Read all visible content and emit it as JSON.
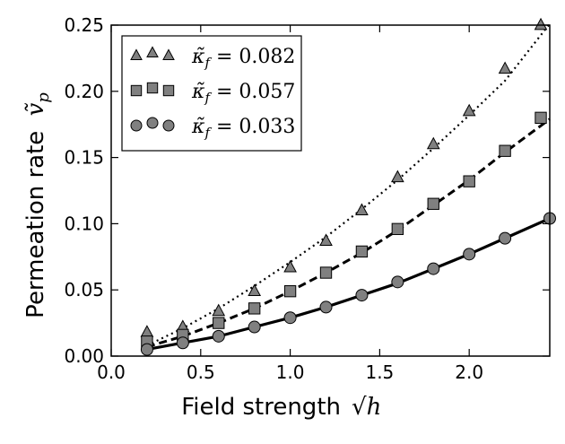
{
  "chart_data": {
    "type": "scatter",
    "title": "",
    "xlabel": "Field strength",
    "xlabel_symbol": "√h",
    "ylabel": "Permeation rate",
    "ylabel_symbol": "ṽ",
    "ylabel_subscript": "p",
    "xlim": [
      0.0,
      2.45
    ],
    "ylim": [
      0.0,
      0.25
    ],
    "xticks": [
      0.0,
      0.5,
      1.0,
      1.5,
      2.0
    ],
    "xtick_labels": [
      "0.0",
      "0.5",
      "1.0",
      "1.5",
      "2.0"
    ],
    "yticks": [
      0.0,
      0.05,
      0.1,
      0.15,
      0.2,
      0.25
    ],
    "ytick_labels": [
      "0.00",
      "0.05",
      "0.10",
      "0.15",
      "0.20",
      "0.25"
    ],
    "grid": false,
    "legend_position": "top-left",
    "legend_symbol": "κ̃",
    "legend_subscript": "f",
    "series": [
      {
        "name": "0.082",
        "marker": "triangle",
        "line_style": "dotted",
        "marker_color": "#808080",
        "x": [
          0.2,
          0.4,
          0.6,
          0.8,
          1.0,
          1.2,
          1.4,
          1.6,
          1.8,
          2.0,
          2.2,
          2.4
        ],
        "y": [
          0.018,
          0.022,
          0.034,
          0.049,
          0.067,
          0.087,
          0.11,
          0.135,
          0.16,
          0.185,
          0.217,
          0.25
        ],
        "fit_x": [
          0.2,
          0.4,
          0.6,
          0.8,
          1.0,
          1.2,
          1.4,
          1.6,
          1.8,
          2.0,
          2.2,
          2.45
        ],
        "fit_y": [
          0.008,
          0.021,
          0.036,
          0.053,
          0.071,
          0.09,
          0.111,
          0.133,
          0.157,
          0.182,
          0.208,
          0.251
        ]
      },
      {
        "name": "0.057",
        "marker": "square",
        "line_style": "dashed",
        "marker_color": "#808080",
        "x": [
          0.2,
          0.4,
          0.6,
          0.8,
          1.0,
          1.2,
          1.4,
          1.6,
          1.8,
          2.0,
          2.2,
          2.4
        ],
        "y": [
          0.011,
          0.016,
          0.025,
          0.036,
          0.049,
          0.063,
          0.079,
          0.096,
          0.115,
          0.132,
          0.155,
          0.18
        ],
        "fit_x": [
          0.2,
          0.4,
          0.6,
          0.8,
          1.0,
          1.2,
          1.4,
          1.6,
          1.8,
          2.0,
          2.2,
          2.45
        ],
        "fit_y": [
          0.007,
          0.015,
          0.025,
          0.036,
          0.049,
          0.063,
          0.078,
          0.095,
          0.114,
          0.133,
          0.154,
          0.179
        ]
      },
      {
        "name": "0.033",
        "marker": "circle",
        "line_style": "solid",
        "marker_color": "#808080",
        "x": [
          0.2,
          0.4,
          0.6,
          0.8,
          1.0,
          1.2,
          1.4,
          1.6,
          1.8,
          2.0,
          2.2,
          2.45
        ],
        "y": [
          0.005,
          0.01,
          0.015,
          0.022,
          0.029,
          0.037,
          0.046,
          0.056,
          0.066,
          0.077,
          0.089,
          0.104
        ],
        "fit_x": [
          0.2,
          0.4,
          0.6,
          0.8,
          1.0,
          1.2,
          1.4,
          1.6,
          1.8,
          2.0,
          2.2,
          2.45
        ],
        "fit_y": [
          0.005,
          0.01,
          0.015,
          0.022,
          0.029,
          0.037,
          0.046,
          0.055,
          0.066,
          0.077,
          0.089,
          0.104
        ]
      }
    ]
  },
  "colors": {
    "marker_fill": "#808080",
    "marker_edge": "#000000",
    "line": "#000000",
    "background": "#ffffff"
  }
}
